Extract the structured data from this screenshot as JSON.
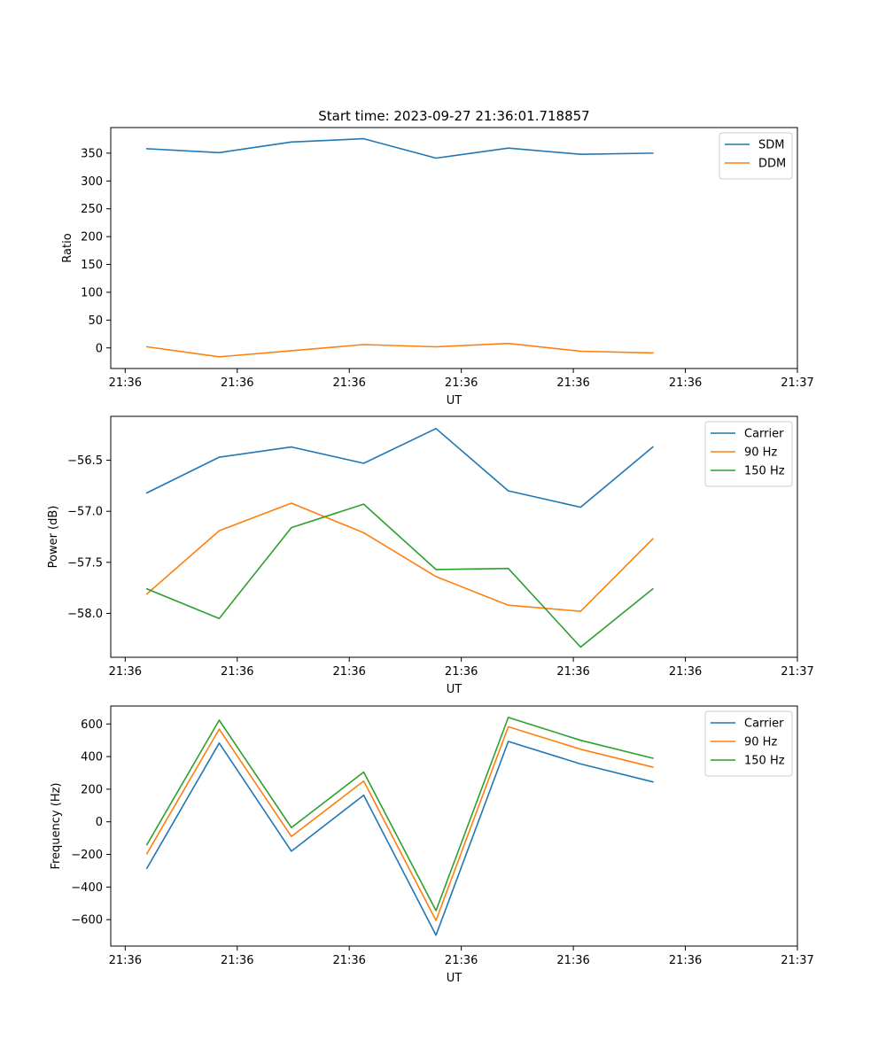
{
  "figure_title": "Start time: 2023-09-27 21:36:01.718857",
  "colors": {
    "blue": "#1f77b4",
    "orange": "#ff7f0e",
    "green": "#2ca02c"
  },
  "chart_data": [
    {
      "type": "line",
      "title": "Start time: 2023-09-27 21:36:01.718857",
      "xlabel": "UT",
      "ylabel": "Ratio",
      "legend": "top-right",
      "grid": false,
      "xlim": [
        -0.5,
        9.0
      ],
      "ylim": [
        -37,
        396
      ],
      "xtick_values": [
        -0.3,
        1.25,
        2.8,
        4.35,
        5.9,
        7.45,
        9.0
      ],
      "xtick_labels": [
        "21:36",
        "21:36",
        "21:36",
        "21:36",
        "21:36",
        "21:36",
        "21:37"
      ],
      "ytick_values": [
        0,
        50,
        100,
        150,
        200,
        250,
        300,
        350
      ],
      "ytick_labels": [
        "0",
        "50",
        "100",
        "150",
        "200",
        "250",
        "300",
        "350"
      ],
      "x": [
        0,
        1,
        2,
        3,
        4,
        5,
        6,
        7
      ],
      "series": [
        {
          "name": "SDM",
          "color": "#1f77b4",
          "values": [
            358,
            351,
            370,
            376,
            341,
            359,
            348,
            350
          ]
        },
        {
          "name": "DDM",
          "color": "#ff7f0e",
          "values": [
            2,
            -16,
            -5,
            6,
            2,
            8,
            -6,
            -9
          ]
        }
      ]
    },
    {
      "type": "line",
      "title": "",
      "xlabel": "UT",
      "ylabel": "Power (dB)",
      "legend": "top-right",
      "grid": false,
      "xlim": [
        -0.5,
        9.0
      ],
      "ylim": [
        -58.43,
        -56.07
      ],
      "xtick_values": [
        -0.3,
        1.25,
        2.8,
        4.35,
        5.9,
        7.45,
        9.0
      ],
      "xtick_labels": [
        "21:36",
        "21:36",
        "21:36",
        "21:36",
        "21:36",
        "21:36",
        "21:37"
      ],
      "ytick_values": [
        -58.0,
        -57.5,
        -57.0,
        -56.5
      ],
      "ytick_labels": [
        "−58.0",
        "−57.5",
        "−57.0",
        "−56.5"
      ],
      "x": [
        0,
        1,
        2,
        3,
        4,
        5,
        6,
        7
      ],
      "series": [
        {
          "name": "Carrier",
          "color": "#1f77b4",
          "values": [
            -56.82,
            -56.47,
            -56.37,
            -56.53,
            -56.19,
            -56.8,
            -56.96,
            -56.37
          ]
        },
        {
          "name": "90 Hz",
          "color": "#ff7f0e",
          "values": [
            -57.81,
            -57.19,
            -56.92,
            -57.21,
            -57.64,
            -57.92,
            -57.98,
            -57.27
          ]
        },
        {
          "name": "150 Hz",
          "color": "#2ca02c",
          "values": [
            -57.76,
            -58.05,
            -57.16,
            -56.93,
            -57.57,
            -57.56,
            -58.33,
            -57.76
          ]
        }
      ]
    },
    {
      "type": "line",
      "title": "",
      "xlabel": "UT",
      "ylabel": "Frequency (Hz)",
      "legend": "top-right",
      "grid": false,
      "xlim": [
        -0.5,
        9.0
      ],
      "ylim": [
        -762,
        710
      ],
      "xtick_values": [
        -0.3,
        1.25,
        2.8,
        4.35,
        5.9,
        7.45,
        9.0
      ],
      "xtick_labels": [
        "21:36",
        "21:36",
        "21:36",
        "21:36",
        "21:36",
        "21:36",
        "21:37"
      ],
      "ytick_values": [
        -600,
        -400,
        -200,
        0,
        200,
        400,
        600
      ],
      "ytick_labels": [
        "−600",
        "−400",
        "−200",
        "0",
        "200",
        "400",
        "600"
      ],
      "x": [
        0,
        1,
        2,
        3,
        4,
        5,
        6,
        7
      ],
      "series": [
        {
          "name": "Carrier",
          "color": "#1f77b4",
          "values": [
            -285,
            483,
            -180,
            163,
            -695,
            493,
            355,
            245
          ]
        },
        {
          "name": "90 Hz",
          "color": "#ff7f0e",
          "values": [
            -195,
            568,
            -90,
            250,
            -605,
            583,
            445,
            335
          ]
        },
        {
          "name": "150 Hz",
          "color": "#2ca02c",
          "values": [
            -140,
            623,
            -35,
            305,
            -545,
            640,
            500,
            390
          ]
        }
      ]
    }
  ]
}
